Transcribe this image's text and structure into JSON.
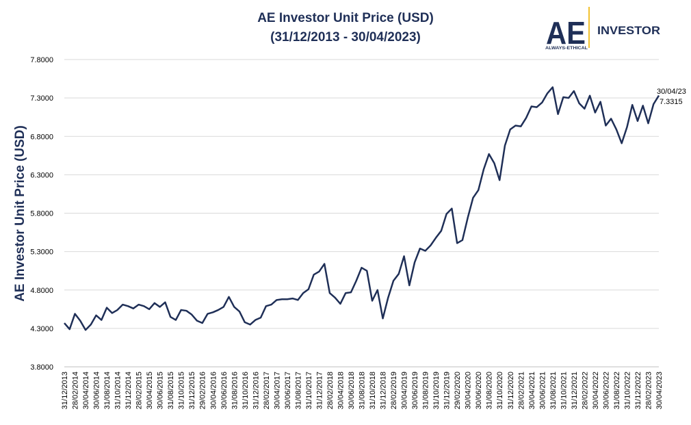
{
  "logo": {
    "mark": "AE",
    "tagline": "ALWAYS-ETHICAL",
    "product": "INVESTOR",
    "accent_color": "#f2c12e",
    "brand_color": "#1f2f57"
  },
  "chart_data": {
    "type": "line",
    "title": "AE Investor Unit Price (USD)",
    "subtitle": "(31/12/2013 - 30/04/2023)",
    "ylabel": "AE Investor Unit Price (USD)",
    "xlabel": "",
    "ylim": [
      3.8,
      7.8
    ],
    "y_ticks": [
      "3.8000",
      "4.3000",
      "4.8000",
      "5.3000",
      "5.8000",
      "6.3000",
      "6.8000",
      "7.3000",
      "7.8000"
    ],
    "grid": true,
    "legend": "none",
    "line_color": "#1f2f57",
    "x_tick_labels": [
      "31/12/2013",
      "28/02/2014",
      "30/04/2014",
      "30/06/2014",
      "31/08/2014",
      "31/10/2014",
      "31/12/2014",
      "28/02/2015",
      "30/04/2015",
      "30/06/2015",
      "31/08/2015",
      "31/10/2015",
      "31/12/2015",
      "29/02/2016",
      "30/04/2016",
      "30/06/2016",
      "31/08/2016",
      "31/10/2016",
      "31/12/2016",
      "28/02/2017",
      "30/04/2017",
      "30/06/2017",
      "31/08/2017",
      "31/10/2017",
      "31/12/2017",
      "28/02/2018",
      "30/04/2018",
      "30/06/2018",
      "31/08/2018",
      "31/10/2018",
      "31/12/2018",
      "28/02/2019",
      "30/04/2019",
      "30/06/2019",
      "31/08/2019",
      "31/10/2019",
      "31/12/2019",
      "29/02/2020",
      "30/04/2020",
      "30/06/2020",
      "31/08/2020",
      "31/10/2020",
      "31/12/2020",
      "28/02/2021",
      "30/04/2021",
      "30/06/2021",
      "31/08/2021",
      "31/10/2021",
      "31/12/2021",
      "28/02/2022",
      "30/04/2022",
      "30/06/2022",
      "31/08/2022",
      "31/10/2022",
      "31/12/2022",
      "28/02/2023",
      "30/04/2023"
    ],
    "series": [
      {
        "values": [
          4.37,
          4.29,
          4.49,
          4.4,
          4.28,
          4.35,
          4.47,
          4.41,
          4.57,
          4.5,
          4.54,
          4.61,
          4.59,
          4.56,
          4.61,
          4.59,
          4.55,
          4.63,
          4.58,
          4.64,
          4.45,
          4.41,
          4.54,
          4.53,
          4.48,
          4.4,
          4.37,
          4.49,
          4.51,
          4.54,
          4.58,
          4.71,
          4.58,
          4.52,
          4.38,
          4.35,
          4.41,
          4.44,
          4.59,
          4.61,
          4.67,
          4.68,
          4.68,
          4.69,
          4.67,
          4.76,
          4.81,
          5.0,
          5.04,
          5.14,
          4.76,
          4.7,
          4.62,
          4.76,
          4.77,
          4.92,
          5.09,
          5.05,
          4.66,
          4.8,
          4.43,
          4.7,
          4.92,
          5.01,
          5.24,
          4.86,
          5.16,
          5.34,
          5.31,
          5.38,
          5.48,
          5.57,
          5.79,
          5.86,
          5.41,
          5.45,
          5.74,
          6.0,
          6.1,
          6.37,
          6.57,
          6.45,
          6.23,
          6.68,
          6.89,
          6.94,
          6.93,
          7.04,
          7.19,
          7.18,
          7.24,
          7.36,
          7.44,
          7.09,
          7.31,
          7.3,
          7.39,
          7.23,
          7.16,
          7.33,
          7.11,
          7.25,
          6.94,
          7.03,
          6.89,
          6.71,
          6.92,
          7.21,
          7.0,
          7.2,
          6.97,
          7.22,
          7.3315
        ]
      }
    ],
    "end_annotation": {
      "date": "30/04/23",
      "value": "7.3315"
    }
  }
}
